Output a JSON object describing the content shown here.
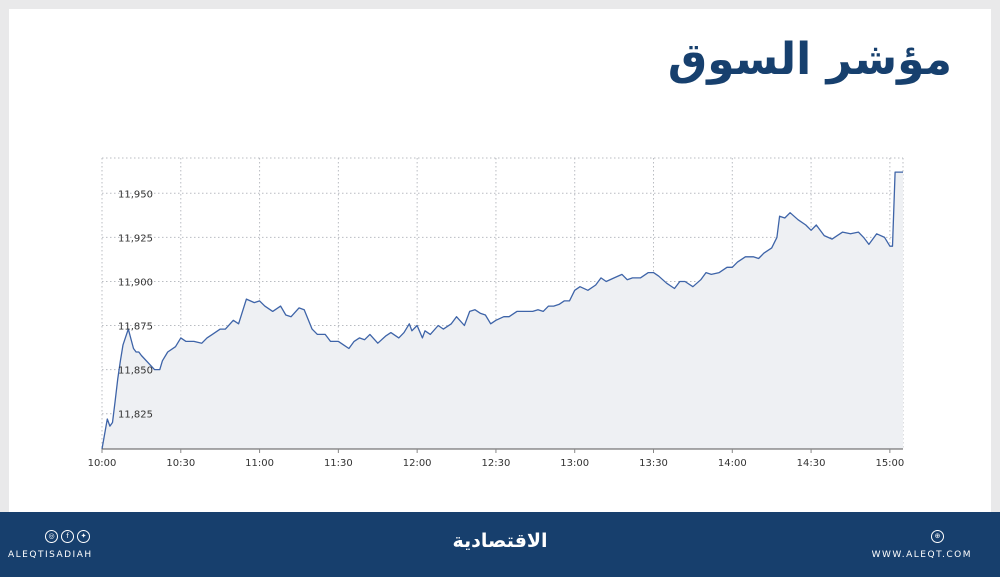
{
  "title": "مؤشر السوق",
  "footer": {
    "handle": "ALEQTISADIAH",
    "brand": "الاقتصادية",
    "website": "WWW.ALEQT.COM",
    "social_icons": [
      "instagram-icon",
      "facebook-icon",
      "twitter-icon"
    ],
    "site_icon": "globe-icon"
  },
  "colors": {
    "line": "#3e64a8",
    "fill": "#eef0f3",
    "title": "#17406e",
    "footer_bg": "#173f6d"
  },
  "chart_data": {
    "type": "area",
    "xlabel": "",
    "ylabel": "",
    "xlim": [
      "10:00",
      "15:05"
    ],
    "ylim": [
      11805,
      11970
    ],
    "grid": true,
    "x_ticks": [
      "10:00",
      "10:30",
      "11:00",
      "11:30",
      "12:00",
      "12:30",
      "13:00",
      "13:30",
      "14:00",
      "14:30",
      "15:00"
    ],
    "y_ticks": [
      11825,
      11850,
      11875,
      11900,
      11925,
      11950
    ],
    "y_tick_labels": [
      "11,825",
      "11,850",
      "11,875",
      "11,900",
      "11,925",
      "11,950"
    ],
    "series": [
      {
        "x": [
          "10:00",
          "10:02",
          "10:03",
          "10:04",
          "10:05",
          "10:06",
          "10:07",
          "10:08",
          "10:10",
          "10:12",
          "10:13",
          "10:14",
          "10:15",
          "10:20",
          "10:22",
          "10:23",
          "10:25",
          "10:28",
          "10:30",
          "10:32",
          "10:35",
          "10:38",
          "10:40",
          "10:42",
          "10:45",
          "10:47",
          "10:50",
          "10:52",
          "10:55",
          "10:58",
          "11:00",
          "11:02",
          "11:05",
          "11:08",
          "11:10",
          "11:12",
          "11:15",
          "11:17",
          "11:20",
          "11:22",
          "11:25",
          "11:27",
          "11:30",
          "11:32",
          "11:34",
          "11:36",
          "11:38",
          "11:40",
          "11:42",
          "11:45",
          "11:48",
          "11:50",
          "11:53",
          "11:55",
          "11:57",
          "11:58",
          "12:00",
          "12:02",
          "12:03",
          "12:05",
          "12:08",
          "12:10",
          "12:13",
          "12:15",
          "12:18",
          "12:20",
          "12:22",
          "12:24",
          "12:26",
          "12:28",
          "12:30",
          "12:33",
          "12:35",
          "12:38",
          "12:40",
          "12:42",
          "12:44",
          "12:46",
          "12:48",
          "12:50",
          "12:52",
          "12:54",
          "12:56",
          "12:58",
          "13:00",
          "13:02",
          "13:05",
          "13:08",
          "13:10",
          "13:12",
          "13:15",
          "13:18",
          "13:20",
          "13:22",
          "13:25",
          "13:28",
          "13:30",
          "13:32",
          "13:35",
          "13:38",
          "13:40",
          "13:42",
          "13:45",
          "13:48",
          "13:50",
          "13:52",
          "13:55",
          "13:58",
          "14:00",
          "14:02",
          "14:05",
          "14:08",
          "14:10",
          "14:12",
          "14:15",
          "14:17",
          "14:18",
          "14:20",
          "14:22",
          "14:25",
          "14:28",
          "14:30",
          "14:32",
          "14:35",
          "14:38",
          "14:40",
          "14:42",
          "14:45",
          "14:48",
          "14:50",
          "14:52",
          "14:55",
          "14:58",
          "15:00",
          "15:01",
          "15:02",
          "15:05"
        ],
        "values": [
          11805,
          11822,
          11818,
          11820,
          11832,
          11845,
          11855,
          11864,
          11873,
          11862,
          11860,
          11860,
          11858,
          11850,
          11850,
          11855,
          11860,
          11863,
          11868,
          11866,
          11866,
          11865,
          11868,
          11870,
          11873,
          11873,
          11878,
          11876,
          11890,
          11888,
          11889,
          11886,
          11883,
          11886,
          11881,
          11880,
          11885,
          11884,
          11873,
          11870,
          11870,
          11866,
          11866,
          11864,
          11862,
          11866,
          11868,
          11867,
          11870,
          11865,
          11869,
          11871,
          11868,
          11871,
          11876,
          11872,
          11875,
          11868,
          11872,
          11870,
          11875,
          11873,
          11876,
          11880,
          11875,
          11883,
          11884,
          11882,
          11881,
          11876,
          11878,
          11880,
          11880,
          11883,
          11883,
          11883,
          11883,
          11884,
          11883,
          11886,
          11886,
          11887,
          11889,
          11889,
          11895,
          11897,
          11895,
          11898,
          11902,
          11900,
          11902,
          11904,
          11901,
          11902,
          11902,
          11905,
          11905,
          11903,
          11899,
          11896,
          11900,
          11900,
          11897,
          11901,
          11905,
          11904,
          11905,
          11908,
          11908,
          11911,
          11914,
          11914,
          11913,
          11916,
          11919,
          11925,
          11937,
          11936,
          11939,
          11935,
          11932,
          11929,
          11932,
          11926,
          11924,
          11926,
          11928,
          11927,
          11928,
          11925,
          11921,
          11927,
          11925,
          11920,
          11920,
          11962,
          11962
        ]
      }
    ]
  }
}
